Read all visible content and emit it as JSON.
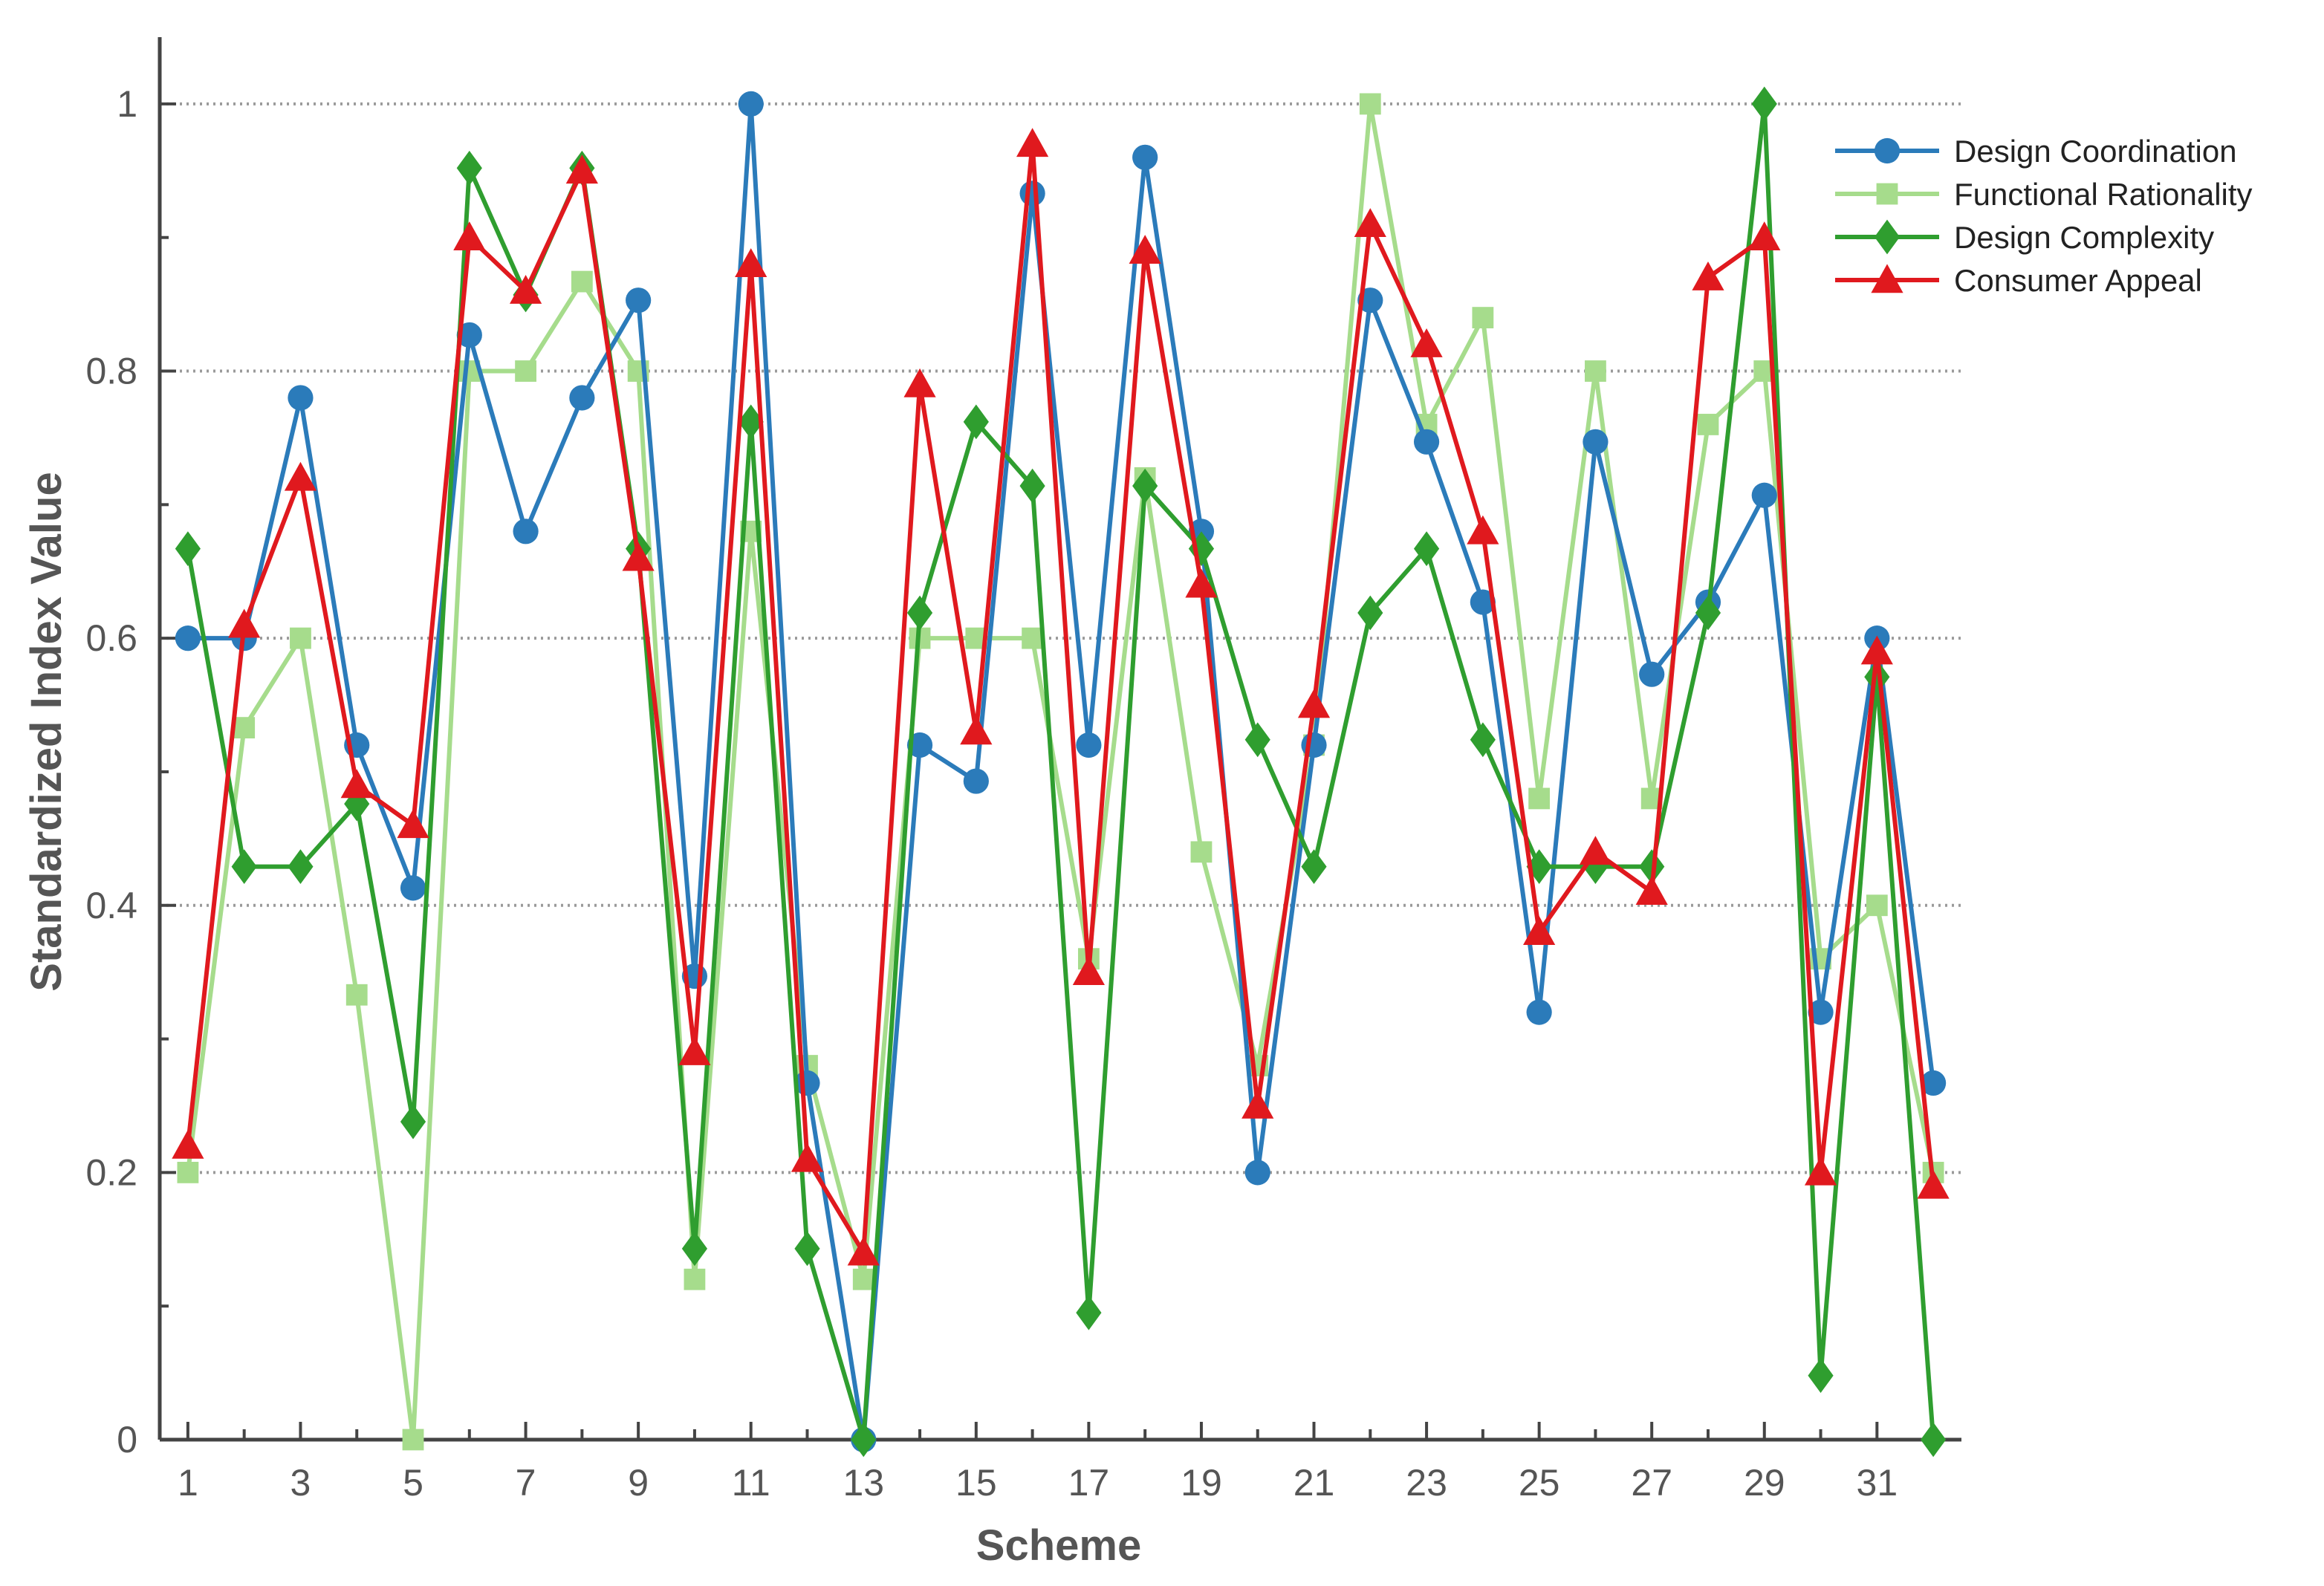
{
  "chart_data": {
    "type": "line",
    "title": "",
    "xlabel": "Scheme",
    "ylabel": "Standardized Index Value",
    "xlim": [
      0.5,
      32.5
    ],
    "ylim": [
      0,
      1.05
    ],
    "x": [
      1,
      2,
      3,
      4,
      5,
      6,
      7,
      8,
      9,
      10,
      11,
      12,
      13,
      14,
      15,
      16,
      17,
      18,
      19,
      20,
      21,
      22,
      23,
      24,
      25,
      26,
      27,
      28,
      29,
      30,
      31,
      32
    ],
    "x_tick_labels": [
      "1",
      "3",
      "5",
      "7",
      "9",
      "11",
      "13",
      "15",
      "17",
      "19",
      "21",
      "23",
      "25",
      "27",
      "29",
      "31"
    ],
    "x_tick_values": [
      1,
      3,
      5,
      7,
      9,
      11,
      13,
      15,
      17,
      19,
      21,
      23,
      25,
      27,
      29,
      31
    ],
    "y_tick_labels": [
      "0",
      "0.2",
      "0.4",
      "0.6",
      "0.8",
      "1"
    ],
    "y_tick_values": [
      0,
      0.2,
      0.4,
      0.6,
      0.8,
      1
    ],
    "grid": "horizontal dotted",
    "legend_position": "top-right",
    "series": [
      {
        "name": "Functional Rationality",
        "color": "#a6dc8c",
        "marker": "square",
        "values": [
          0.2,
          0.533,
          0.6,
          0.333,
          0.0,
          0.8,
          0.8,
          0.867,
          0.8,
          0.12,
          0.68,
          0.28,
          0.12,
          0.6,
          0.6,
          0.6,
          0.36,
          0.72,
          0.44,
          0.28,
          0.52,
          1.0,
          0.76,
          0.84,
          0.48,
          0.8,
          0.48,
          0.76,
          0.8,
          0.36,
          0.4,
          0.2
        ]
      },
      {
        "name": "Design Coordination",
        "color": "#2b7bba",
        "marker": "circle",
        "values": [
          0.6,
          0.6,
          0.78,
          0.52,
          0.413,
          0.827,
          0.68,
          0.78,
          0.853,
          0.347,
          1.0,
          0.267,
          0.0,
          0.52,
          0.493,
          0.933,
          0.52,
          0.96,
          0.68,
          0.2,
          0.52,
          0.853,
          0.747,
          0.627,
          0.32,
          0.747,
          0.573,
          0.627,
          0.707,
          0.32,
          0.6,
          0.267
        ]
      },
      {
        "name": "Design Complexity",
        "color": "#2f9e2f",
        "marker": "diamond",
        "values": [
          0.667,
          0.429,
          0.429,
          0.476,
          0.238,
          0.952,
          0.857,
          0.952,
          0.667,
          0.143,
          0.762,
          0.143,
          0.0,
          0.619,
          0.762,
          0.714,
          0.095,
          0.714,
          0.667,
          0.524,
          0.429,
          0.619,
          0.667,
          0.524,
          0.429,
          0.429,
          0.429,
          0.619,
          1.0,
          0.048,
          0.571,
          0.0
        ]
      },
      {
        "name": "Consumer Appeal",
        "color": "#e0191e",
        "marker": "triangle",
        "values": [
          0.22,
          0.61,
          0.72,
          0.49,
          0.46,
          0.9,
          0.86,
          0.95,
          0.66,
          0.29,
          0.88,
          0.21,
          0.14,
          0.79,
          0.53,
          0.97,
          0.35,
          0.89,
          0.64,
          0.25,
          0.55,
          0.91,
          0.82,
          0.68,
          0.38,
          0.44,
          0.41,
          0.87,
          0.9,
          0.2,
          0.59,
          0.19
        ]
      }
    ],
    "legend": [
      {
        "label": "Design Coordination",
        "color": "#2b7bba",
        "marker": "circle"
      },
      {
        "label": "Functional Rationality",
        "color": "#a6dc8c",
        "marker": "square"
      },
      {
        "label": "Design Complexity",
        "color": "#2f9e2f",
        "marker": "diamond"
      },
      {
        "label": "Consumer Appeal",
        "color": "#e0191e",
        "marker": "triangle"
      }
    ]
  }
}
